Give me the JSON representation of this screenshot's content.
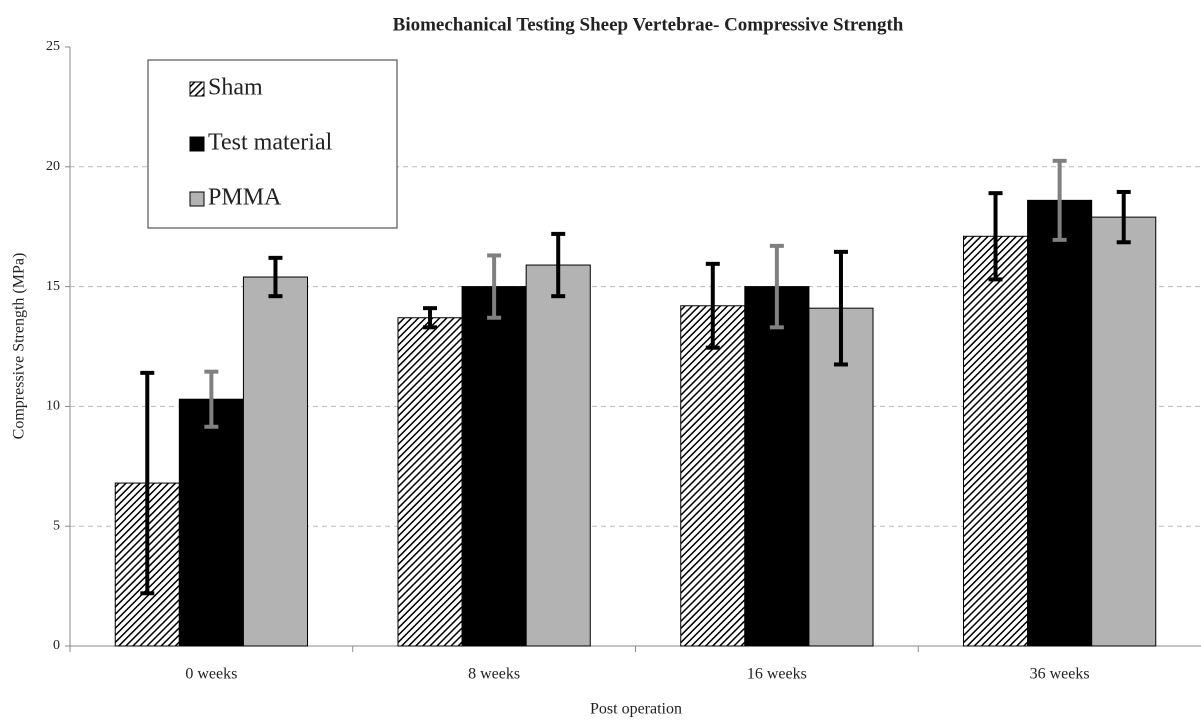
{
  "chart_data": {
    "type": "bar",
    "title": "Biomechanical Testing Sheep Vertebrae- Compressive Strength",
    "xlabel": "Post operation",
    "ylabel": "Compressive Strength (MPa)",
    "categories": [
      "0 weeks",
      "8 weeks",
      "16 weeks",
      "36 weeks"
    ],
    "series": [
      {
        "name": "Sham",
        "color": "#ffffff",
        "hatch": true,
        "error_color": "#000000",
        "values": [
          6.8,
          13.7,
          14.2,
          17.1
        ],
        "errors": [
          4.6,
          0.4,
          1.75,
          1.8
        ]
      },
      {
        "name": "Test material",
        "color": "#000000",
        "hatch": false,
        "error_color": "#808080",
        "values": [
          10.3,
          15.0,
          15.0,
          18.6
        ],
        "errors": [
          1.15,
          1.3,
          1.7,
          1.65
        ]
      },
      {
        "name": "PMMA",
        "color": "#b3b3b3",
        "hatch": false,
        "error_color": "#000000",
        "values": [
          15.4,
          15.9,
          14.1,
          17.9
        ],
        "errors": [
          0.8,
          1.3,
          2.35,
          1.05
        ]
      }
    ],
    "ylim": [
      0,
      25
    ],
    "yticks": [
      0,
      5,
      10,
      15,
      20,
      25
    ],
    "grid": true,
    "legend": "upper left"
  }
}
